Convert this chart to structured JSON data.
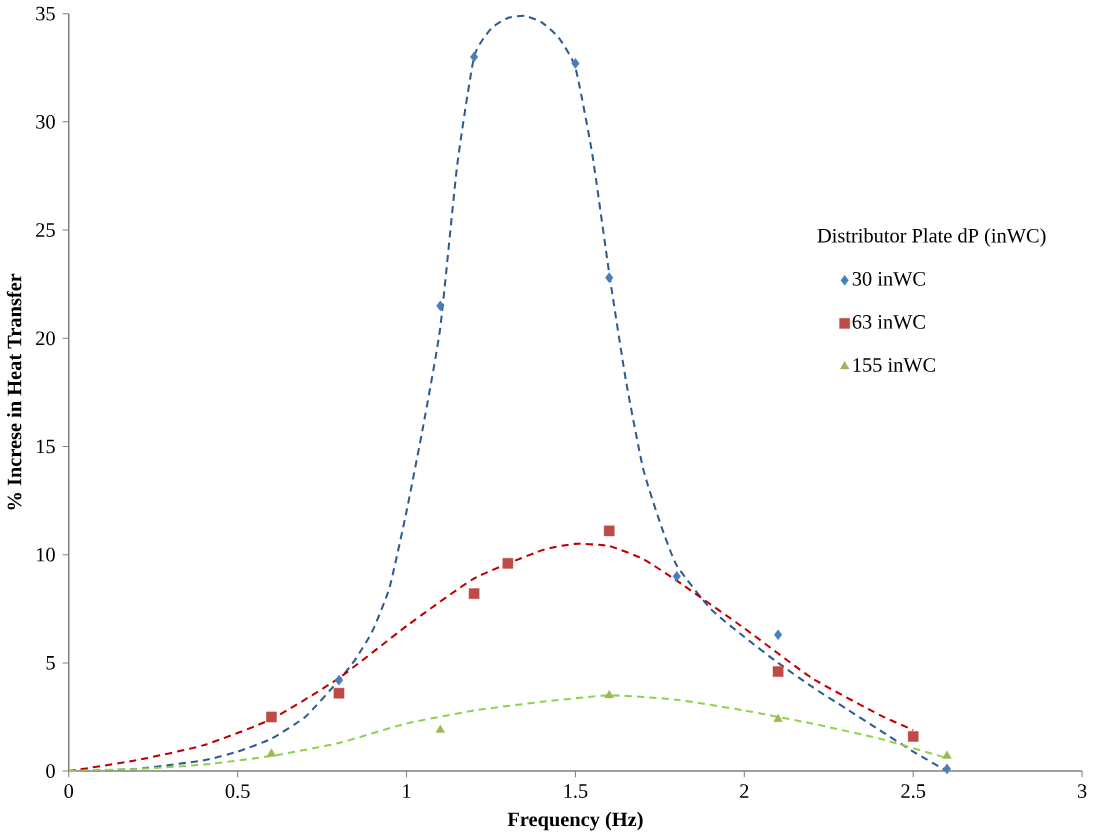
{
  "chart_data": {
    "type": "scatter",
    "xlabel": "Frequency (Hz)",
    "ylabel": "% Increse in Heat Transfer",
    "legend_title": "Distributor Plate dP (inWC)",
    "legend": "right",
    "grid": false,
    "xlim": [
      0,
      3
    ],
    "ylim": [
      0,
      35
    ],
    "xticks": [
      0,
      0.5,
      1,
      1.5,
      2,
      2.5,
      3
    ],
    "yticks": [
      0,
      5,
      10,
      15,
      20,
      25,
      30,
      35
    ],
    "series": [
      {
        "name": "30 inWC",
        "marker": "diamond",
        "color": "#4a7ebb",
        "x": [
          0.8,
          1.1,
          1.2,
          1.5,
          1.6,
          1.8,
          2.1,
          2.6
        ],
        "values": [
          4.2,
          21.5,
          33,
          32.7,
          22.8,
          9.0,
          6.3,
          0.1
        ]
      },
      {
        "name": "63 inWC",
        "marker": "square",
        "color": "#be4b48",
        "x": [
          0.6,
          0.8,
          1.2,
          1.3,
          1.6,
          2.1,
          2.5
        ],
        "values": [
          2.5,
          3.6,
          8.2,
          9.6,
          11.1,
          4.6,
          1.6
        ]
      },
      {
        "name": "155 inWC",
        "marker": "triangle",
        "color": "#98b954",
        "x": [
          0.6,
          1.1,
          1.6,
          2.1,
          2.6
        ],
        "values": [
          0.8,
          1.9,
          3.5,
          2.4,
          0.7
        ]
      },
      {
        "type": "line",
        "line_style": "dashed",
        "marker": "none",
        "color": "#2f5b8f",
        "x": [
          0,
          0.2,
          0.4,
          0.5,
          0.6,
          0.7,
          0.8,
          0.85,
          0.9,
          0.95,
          1.0,
          1.05,
          1.1,
          1.15,
          1.2,
          1.25,
          1.3,
          1.35,
          1.4,
          1.45,
          1.5,
          1.55,
          1.6,
          1.65,
          1.7,
          1.75,
          1.8,
          1.9,
          2.0,
          2.1,
          2.2,
          2.3,
          2.4,
          2.5,
          2.6
        ],
        "values": [
          0,
          0.1,
          0.5,
          0.9,
          1.5,
          2.5,
          4.2,
          5.2,
          6.5,
          8.5,
          12,
          16,
          20.5,
          28,
          33,
          34.3,
          34.8,
          34.9,
          34.6,
          33.9,
          32.5,
          28.5,
          23,
          18,
          14,
          11.5,
          9.5,
          7.5,
          6.2,
          5.0,
          3.9,
          2.9,
          1.9,
          0.9,
          0
        ]
      },
      {
        "type": "line",
        "line_style": "dashed",
        "marker": "none",
        "color": "#c00000",
        "x": [
          0,
          0.2,
          0.4,
          0.6,
          0.8,
          1.0,
          1.2,
          1.4,
          1.5,
          1.6,
          1.7,
          1.8,
          2.0,
          2.2,
          2.4,
          2.5
        ],
        "values": [
          0,
          0.5,
          1.2,
          2.4,
          4.3,
          6.7,
          8.9,
          10.2,
          10.5,
          10.4,
          9.8,
          8.8,
          6.6,
          4.3,
          2.6,
          1.9
        ]
      },
      {
        "type": "line",
        "line_style": "dashed",
        "marker": "none",
        "color": "#92d050",
        "x": [
          0,
          0.2,
          0.4,
          0.6,
          0.8,
          1.0,
          1.2,
          1.4,
          1.6,
          1.8,
          2.0,
          2.2,
          2.4,
          2.6
        ],
        "values": [
          0,
          0.1,
          0.3,
          0.7,
          1.3,
          2.2,
          2.8,
          3.2,
          3.5,
          3.3,
          2.8,
          2.2,
          1.5,
          0.6
        ]
      }
    ]
  }
}
